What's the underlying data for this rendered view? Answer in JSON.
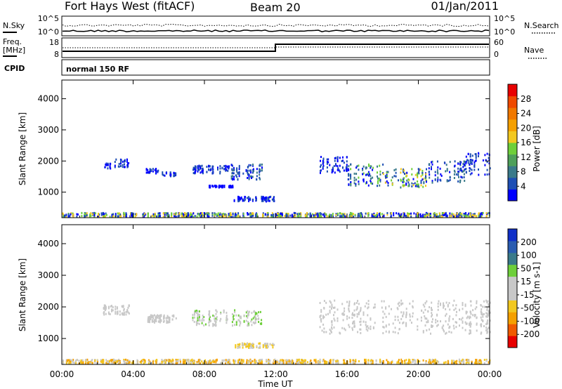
{
  "header": {
    "radar": "Fort Hays West (fitACF)",
    "beam": "Beam 20",
    "date": "01/Jan/2011"
  },
  "strip": {
    "nsky_label": "N.Sky",
    "nsearch_label": "N.Search",
    "noise_ticks": [
      "10^5",
      "10^0"
    ],
    "freq_label": "Freq.",
    "freq_unit": "[MHz]",
    "freq_ticks": [
      "18",
      "8"
    ],
    "nave_label": "Nave",
    "nave_ticks": [
      "60",
      "0"
    ],
    "cpid_label": "CPID",
    "cpid_value": "normal 150 RF"
  },
  "chart_data": [
    {
      "type": "heatmap",
      "name": "power",
      "ylabel": "Slant Range [km]",
      "xlabel": "Time UT",
      "x_ticks": [
        "00:00",
        "04:00",
        "08:00",
        "12:00",
        "16:00",
        "20:00",
        "00:00"
      ],
      "x_hours": [
        0,
        4,
        8,
        12,
        16,
        20,
        24
      ],
      "xlim_hours": [
        0,
        24
      ],
      "y_ticks": [
        1000,
        2000,
        3000,
        4000
      ],
      "ylim": [
        180,
        4600
      ],
      "colorbar": {
        "label": "Power [dB]",
        "ticks": [
          "4",
          "8",
          "12",
          "16",
          "20",
          "24",
          "28"
        ],
        "colors": [
          "#0000ff",
          "#1e4fb4",
          "#3a7a8a",
          "#4ea05a",
          "#6ecf3a",
          "#f2c820",
          "#f5a000",
          "#f07800",
          "#f04a00",
          "#e80000"
        ]
      },
      "bands": [
        {
          "t0": 2.3,
          "t1": 2.8,
          "r0": 1750,
          "r1": 1950,
          "colors": [
            "#1e4fb4",
            "#0000ff"
          ]
        },
        {
          "t0": 2.9,
          "t1": 3.8,
          "r0": 1800,
          "r1": 2050,
          "colors": [
            "#1e4fb4",
            "#0000ff"
          ]
        },
        {
          "t0": 4.6,
          "t1": 5.4,
          "r0": 1600,
          "r1": 1750,
          "colors": [
            "#0000ff",
            "#1e4fb4"
          ]
        },
        {
          "t0": 5.6,
          "t1": 6.4,
          "r0": 1500,
          "r1": 1650,
          "colors": [
            "#0000ff",
            "#1e4fb4"
          ]
        },
        {
          "t0": 7.3,
          "t1": 9.4,
          "r0": 1600,
          "r1": 1850,
          "colors": [
            "#1e4fb4",
            "#0000ff"
          ]
        },
        {
          "t0": 9.4,
          "t1": 11.2,
          "r0": 1400,
          "r1": 1900,
          "colors": [
            "#0000ff",
            "#1e4fb4",
            "#3a7a8a"
          ]
        },
        {
          "t0": 8.2,
          "t1": 9.6,
          "r0": 1150,
          "r1": 1210,
          "colors": [
            "#0000ff"
          ]
        },
        {
          "t0": 9.6,
          "t1": 11.9,
          "r0": 700,
          "r1": 850,
          "colors": [
            "#0000ff",
            "#1e4fb4"
          ]
        },
        {
          "t0": 14.4,
          "t1": 16.0,
          "r0": 1600,
          "r1": 2150,
          "colors": [
            "#1e4fb4",
            "#0000ff"
          ]
        },
        {
          "t0": 16.0,
          "t1": 18.0,
          "r0": 1200,
          "r1": 1900,
          "colors": [
            "#1e4fb4",
            "#0000ff",
            "#3a7a8a",
            "#6ecf3a"
          ]
        },
        {
          "t0": 18.0,
          "t1": 20.5,
          "r0": 1150,
          "r1": 1750,
          "colors": [
            "#1e4fb4",
            "#0000ff",
            "#3a7a8a",
            "#6ecf3a",
            "#f2c820"
          ]
        },
        {
          "t0": 20.5,
          "t1": 22.6,
          "r0": 1300,
          "r1": 2000,
          "colors": [
            "#0000ff",
            "#1e4fb4",
            "#3a7a8a"
          ]
        },
        {
          "t0": 22.6,
          "t1": 24.0,
          "r0": 1550,
          "r1": 2250,
          "colors": [
            "#0000ff",
            "#1e4fb4"
          ]
        },
        {
          "t0": 0.0,
          "t1": 24.0,
          "r0": 200,
          "r1": 330,
          "colors": [
            "#0000ff",
            "#f2c820",
            "#6ecf3a",
            "#1e4fb4"
          ]
        }
      ]
    },
    {
      "type": "heatmap",
      "name": "velocity",
      "ylabel": "Slant Range [km]",
      "xlabel": "Time UT",
      "x_ticks": [
        "00:00",
        "04:00",
        "08:00",
        "12:00",
        "16:00",
        "20:00",
        "00:00"
      ],
      "x_hours": [
        0,
        4,
        8,
        12,
        16,
        20,
        24
      ],
      "xlim_hours": [
        0,
        24
      ],
      "y_ticks": [
        1000,
        2000,
        3000,
        4000
      ],
      "ylim": [
        180,
        4600
      ],
      "colorbar": {
        "label": "Velocity [m s-1]",
        "ticks": [
          "200",
          "100",
          "50",
          "15",
          "-15",
          "-50",
          "-100",
          "-200"
        ],
        "colors": [
          "#1030c8",
          "#2a5cb0",
          "#3a7a8a",
          "#6ecf3a",
          "#c8c8c8",
          "#c8c8c8",
          "#f2c820",
          "#f5a000",
          "#f05a00",
          "#e80000"
        ]
      },
      "bands": [
        {
          "t0": 2.3,
          "t1": 3.8,
          "r0": 1750,
          "r1": 2050,
          "colors": [
            "#c8c8c8"
          ]
        },
        {
          "t0": 4.6,
          "t1": 6.4,
          "r0": 1500,
          "r1": 1750,
          "colors": [
            "#c8c8c8"
          ]
        },
        {
          "t0": 7.3,
          "t1": 11.2,
          "r0": 1400,
          "r1": 1900,
          "colors": [
            "#c8c8c8",
            "#c8c8c8",
            "#6ecf3a"
          ]
        },
        {
          "t0": 9.6,
          "t1": 11.9,
          "r0": 700,
          "r1": 850,
          "colors": [
            "#f2c820",
            "#c8c8c8"
          ]
        },
        {
          "t0": 14.4,
          "t1": 24.0,
          "r0": 1150,
          "r1": 2200,
          "colors": [
            "#c8c8c8"
          ]
        },
        {
          "t0": 0.0,
          "t1": 24.0,
          "r0": 200,
          "r1": 330,
          "colors": [
            "#f2c820",
            "#f5a000",
            "#c8c8c8"
          ]
        }
      ]
    }
  ]
}
